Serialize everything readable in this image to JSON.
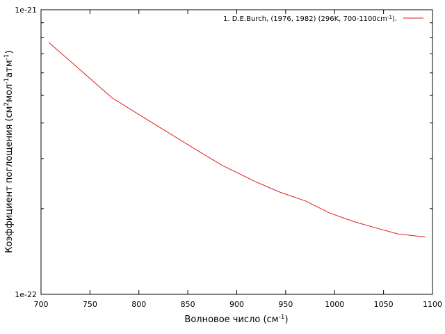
{
  "chart_data": {
    "type": "line",
    "scale_y": "log",
    "xlim": [
      700,
      1100
    ],
    "ylim": [
      1e-22,
      1e-21
    ],
    "x_ticks": [
      700,
      750,
      800,
      850,
      900,
      950,
      1000,
      1050,
      1100
    ],
    "x_tick_labels": [
      "700",
      "750",
      "800",
      "850",
      "900",
      "950",
      "1000",
      "1050",
      "1100"
    ],
    "y_tick_labels": {
      "top": "1e-21",
      "bottom": "1e-22"
    },
    "y_minor_ticks": [
      2e-22,
      3e-22,
      4e-22,
      5e-22,
      6e-22,
      7e-22,
      8e-22,
      9e-22
    ],
    "xlabel": {
      "text": "Волновое число (см",
      "sup": "-1",
      "end": ")"
    },
    "ylabel": {
      "prefix": "Коэффициент поглощения (см",
      "sup1": "2",
      "middle": "мол",
      "sup2": "-1",
      "middle2": "атм",
      "sup3": "-1",
      "end": ")"
    },
    "legend_position": "top-right",
    "grid": false,
    "series": [
      {
        "name": "1. D.E.Burch, (1976, 1982) (296K, 700-1100cm",
        "name_sup": "-1",
        "name_end": ").",
        "color": "#e41a1c",
        "x": [
          708,
          740,
          772,
          800,
          830,
          860,
          885,
          920,
          945,
          970,
          995,
          1020,
          1045,
          1065,
          1093
        ],
        "y": [
          7.67e-22,
          6.15e-22,
          4.92e-22,
          4.28e-22,
          3.7e-22,
          3.2e-22,
          2.84e-22,
          2.48e-22,
          2.28e-22,
          2.13e-22,
          1.93e-22,
          1.8e-22,
          1.7e-22,
          1.63e-22,
          1.59e-22
        ]
      }
    ]
  }
}
